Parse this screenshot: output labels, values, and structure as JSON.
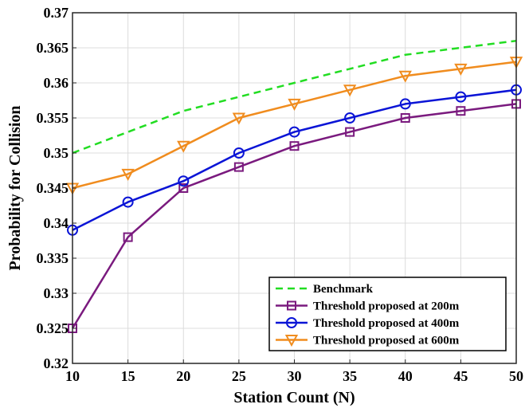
{
  "chart_data": {
    "type": "line",
    "xlabel": "Station Count (N)",
    "ylabel": "Probability for Collision",
    "xlim": [
      10,
      50
    ],
    "ylim": [
      0.32,
      0.37
    ],
    "xticks": [
      "10",
      "15",
      "20",
      "25",
      "30",
      "35",
      "40",
      "45",
      "50"
    ],
    "yticks": [
      "0.32",
      "0.325",
      "0.33",
      "0.335",
      "0.34",
      "0.345",
      "0.35",
      "0.355",
      "0.36",
      "0.365",
      "0.37"
    ],
    "grid": true,
    "legend_position": "bottom-right",
    "x": [
      10,
      15,
      20,
      25,
      30,
      35,
      40,
      45,
      50
    ],
    "series": [
      {
        "name": "Benchmark",
        "color": "#22dd22",
        "line_style": "dashed",
        "marker": "none",
        "values": [
          0.35,
          0.353,
          0.356,
          0.358,
          0.36,
          0.362,
          0.364,
          0.365,
          0.366
        ]
      },
      {
        "name": "Threshold proposed at 200m",
        "color": "#7a1a7e",
        "line_style": "solid",
        "marker": "square",
        "values": [
          0.325,
          0.338,
          0.345,
          0.348,
          0.351,
          0.353,
          0.355,
          0.356,
          0.357
        ]
      },
      {
        "name": "Threshold proposed at 400m",
        "color": "#0a14d6",
        "line_style": "solid",
        "marker": "circle",
        "values": [
          0.339,
          0.343,
          0.346,
          0.35,
          0.353,
          0.355,
          0.357,
          0.358,
          0.359
        ]
      },
      {
        "name": "Threshold proposed at 600m",
        "color": "#f08c1e",
        "line_style": "solid",
        "marker": "triangle-down",
        "values": [
          0.345,
          0.347,
          0.351,
          0.355,
          0.357,
          0.359,
          0.361,
          0.362,
          0.363
        ]
      }
    ]
  }
}
